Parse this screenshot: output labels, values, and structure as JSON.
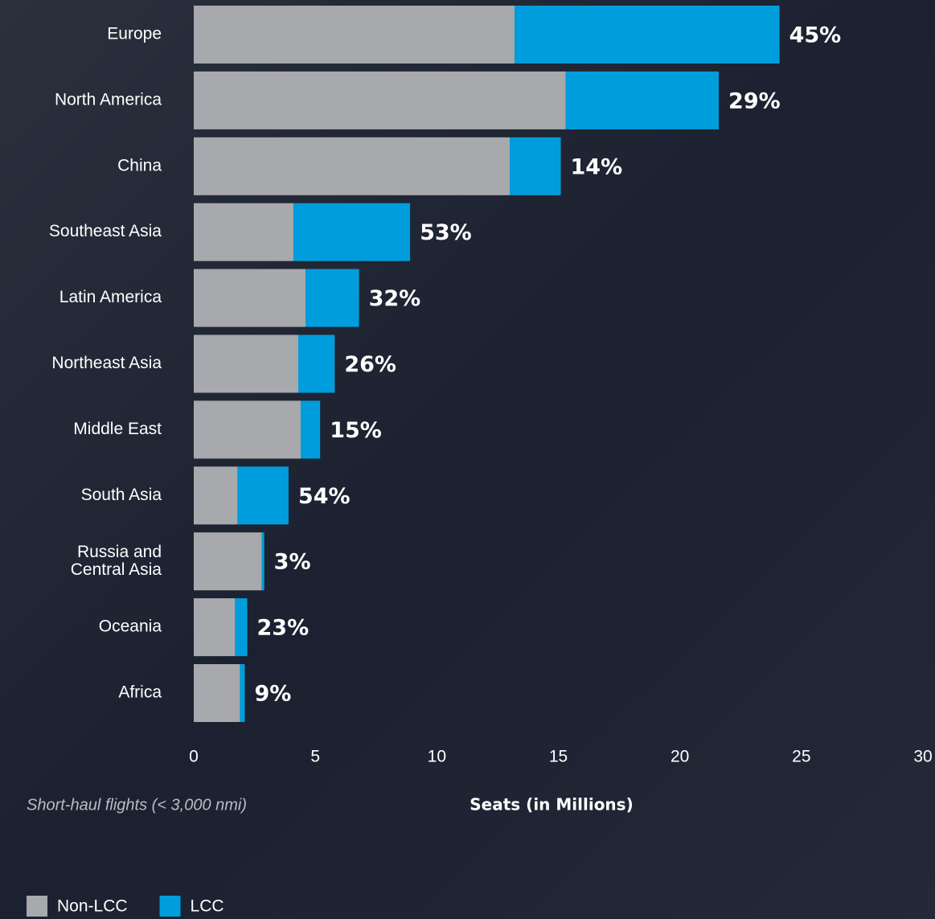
{
  "chart_data": {
    "type": "stacked-bar-horizontal",
    "categories": [
      "Europe",
      "North America",
      "China",
      "Southeast Asia",
      "Latin America",
      "Northeast Asia",
      "Middle East",
      "South Asia",
      "Russia and\nCentral Asia",
      "Oceania",
      "Africa"
    ],
    "series": [
      {
        "name": "Non-LCC",
        "color": "#a7a9ac",
        "values": [
          13.2,
          15.3,
          13.0,
          4.1,
          4.6,
          4.3,
          4.4,
          1.8,
          2.8,
          1.7,
          1.9
        ]
      },
      {
        "name": "LCC",
        "color": "#009ddc",
        "values": [
          10.9,
          6.3,
          2.1,
          4.8,
          2.2,
          1.5,
          0.8,
          2.1,
          0.1,
          0.5,
          0.2
        ]
      }
    ],
    "share_labels": [
      "45%",
      "29%",
      "14%",
      "53%",
      "32%",
      "26%",
      "15%",
      "54%",
      "3%",
      "23%",
      "9%"
    ],
    "xlim": [
      0,
      30
    ],
    "xticks": [
      0,
      5,
      10,
      15,
      20,
      25,
      30
    ],
    "xlabel": "Seats (in Millions)",
    "note": "Short-haul flights (< 3,000 nmi)",
    "grid": false
  }
}
